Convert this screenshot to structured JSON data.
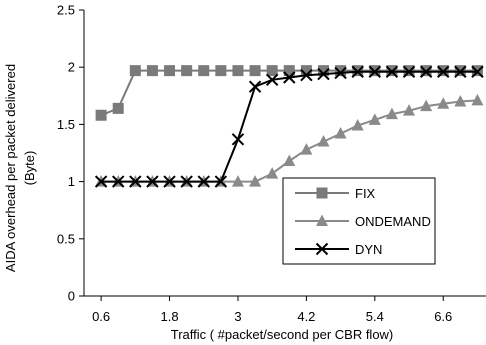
{
  "chart_data": {
    "type": "line",
    "title": "",
    "xlabel": "Traffic ( #packet/second per CBR flow)",
    "ylabel": [
      "AIDA overhead per packet delivered",
      "(Byte)"
    ],
    "xlim": [
      0.3,
      7.35
    ],
    "ylim": [
      0,
      2.5
    ],
    "xticks": [
      0.6,
      1.8,
      3,
      4.2,
      5.4,
      6.6
    ],
    "xtick_labels": [
      "0.6",
      "1.8",
      "3",
      "4.2",
      "5.4",
      "6.6"
    ],
    "yticks": [
      0,
      0.5,
      1,
      1.5,
      2,
      2.5
    ],
    "ytick_labels": [
      "0",
      "0.5",
      "1",
      "1.5",
      "2",
      "2.5"
    ],
    "grid": false,
    "legend_position": "center-right",
    "series": [
      {
        "name": "FIX",
        "marker": "square",
        "color": "#7a7a7a",
        "x": [
          0.6,
          0.9,
          1.2,
          1.5,
          1.8,
          2.1,
          2.4,
          2.7,
          3.0,
          3.3,
          3.6,
          3.9,
          4.2,
          4.5,
          4.8,
          5.1,
          5.4,
          5.7,
          6.0,
          6.3,
          6.6,
          6.9,
          7.2
        ],
        "y": [
          1.58,
          1.64,
          1.97,
          1.97,
          1.97,
          1.97,
          1.97,
          1.97,
          1.97,
          1.97,
          1.97,
          1.97,
          1.97,
          1.97,
          1.97,
          1.97,
          1.97,
          1.97,
          1.97,
          1.97,
          1.97,
          1.97,
          1.97
        ]
      },
      {
        "name": "ONDEMAND",
        "marker": "triangle",
        "color": "#8a8a8a",
        "x": [
          0.6,
          0.9,
          1.2,
          1.5,
          1.8,
          2.1,
          2.4,
          2.7,
          3.0,
          3.3,
          3.6,
          3.9,
          4.2,
          4.5,
          4.8,
          5.1,
          5.4,
          5.7,
          6.0,
          6.3,
          6.6,
          6.9,
          7.2
        ],
        "y": [
          1.0,
          1.0,
          1.0,
          1.0,
          1.0,
          1.0,
          1.0,
          1.0,
          1.0,
          1.0,
          1.07,
          1.18,
          1.28,
          1.35,
          1.42,
          1.49,
          1.54,
          1.59,
          1.62,
          1.66,
          1.68,
          1.7,
          1.71
        ]
      },
      {
        "name": "DYN",
        "marker": "x",
        "color": "#000000",
        "x": [
          0.6,
          0.9,
          1.2,
          1.5,
          1.8,
          2.1,
          2.4,
          2.7,
          3.0,
          3.3,
          3.6,
          3.9,
          4.2,
          4.5,
          4.8,
          5.1,
          5.4,
          5.7,
          6.0,
          6.3,
          6.6,
          6.9,
          7.2
        ],
        "y": [
          1.0,
          1.0,
          1.0,
          1.0,
          1.0,
          1.0,
          1.0,
          1.0,
          1.37,
          1.83,
          1.89,
          1.91,
          1.93,
          1.94,
          1.95,
          1.96,
          1.96,
          1.96,
          1.96,
          1.96,
          1.96,
          1.96,
          1.96
        ]
      }
    ]
  }
}
